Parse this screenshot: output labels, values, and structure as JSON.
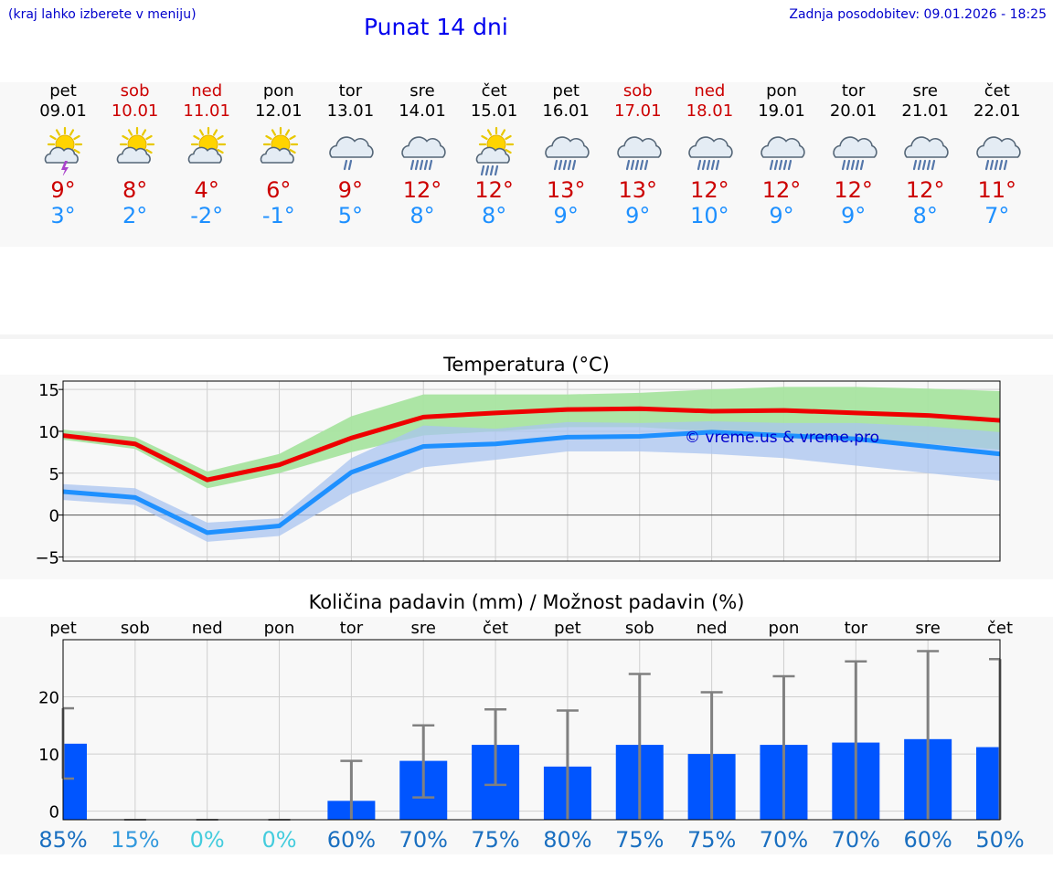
{
  "header": {
    "hint": "(kraj lahko izberete v meniju)",
    "title": "Punat 14 dni",
    "updated": "Zadnja posodobitev: 09.01.2026 - 18:25"
  },
  "days": [
    {
      "name": "pet",
      "date": "09.01",
      "icon": "sun-cloud-thunder-icon",
      "tmax": "9°",
      "tmin": "3°",
      "weekend": false
    },
    {
      "name": "sob",
      "date": "10.01",
      "icon": "sun-cloud-icon",
      "tmax": "8°",
      "tmin": "2°",
      "weekend": true
    },
    {
      "name": "ned",
      "date": "11.01",
      "icon": "sun-cloud-icon",
      "tmax": "4°",
      "tmin": "-2°",
      "weekend": true
    },
    {
      "name": "pon",
      "date": "12.01",
      "icon": "sun-cloud-icon",
      "tmax": "6°",
      "tmin": "-1°",
      "weekend": false
    },
    {
      "name": "tor",
      "date": "13.01",
      "icon": "cloud-light-rain-icon",
      "tmax": "9°",
      "tmin": "5°",
      "weekend": false
    },
    {
      "name": "sre",
      "date": "14.01",
      "icon": "cloud-rain-icon",
      "tmax": "12°",
      "tmin": "8°",
      "weekend": false
    },
    {
      "name": "čet",
      "date": "15.01",
      "icon": "sun-cloud-rain-icon",
      "tmax": "12°",
      "tmin": "8°",
      "weekend": false
    },
    {
      "name": "pet",
      "date": "16.01",
      "icon": "cloud-rain-icon",
      "tmax": "13°",
      "tmin": "9°",
      "weekend": false
    },
    {
      "name": "sob",
      "date": "17.01",
      "icon": "cloud-rain-icon",
      "tmax": "13°",
      "tmin": "9°",
      "weekend": true
    },
    {
      "name": "ned",
      "date": "18.01",
      "icon": "cloud-rain-icon",
      "tmax": "12°",
      "tmin": "10°",
      "weekend": true
    },
    {
      "name": "pon",
      "date": "19.01",
      "icon": "cloud-rain-icon",
      "tmax": "12°",
      "tmin": "9°",
      "weekend": false
    },
    {
      "name": "tor",
      "date": "20.01",
      "icon": "cloud-rain-icon",
      "tmax": "12°",
      "tmin": "9°",
      "weekend": false
    },
    {
      "name": "sre",
      "date": "21.01",
      "icon": "cloud-rain-icon",
      "tmax": "12°",
      "tmin": "8°",
      "weekend": false
    },
    {
      "name": "čet",
      "date": "22.01",
      "icon": "cloud-rain-icon",
      "tmax": "11°",
      "tmin": "7°",
      "weekend": false
    }
  ],
  "colors": {
    "max_line": "#ee0000",
    "max_band": "#a8e4a0",
    "min_line": "#1e90ff",
    "min_band": "#aac4f0",
    "bar": "#0055ff",
    "whisker": "#808080",
    "weekend": "#cc0000"
  },
  "chart_data": [
    {
      "type": "line",
      "title": "Temperatura (°C)",
      "ylim": [
        -5.5,
        16
      ],
      "yticks": [
        -5,
        0,
        5,
        10,
        15
      ],
      "grid": true,
      "watermark": "© vreme.us & vreme.pro",
      "x": [
        0,
        1,
        2,
        3,
        4,
        5,
        6,
        7,
        8,
        9,
        10,
        11,
        12,
        13
      ],
      "series": [
        {
          "name": "max",
          "values": [
            9.5,
            8.5,
            4.2,
            6.0,
            9.2,
            11.7,
            12.2,
            12.6,
            12.7,
            12.4,
            12.5,
            12.2,
            11.9,
            11.3
          ],
          "band_low": [
            9.0,
            7.9,
            3.2,
            5.0,
            7.5,
            9.5,
            10.0,
            10.5,
            10.5,
            10.0,
            9.5,
            9.0,
            8.5,
            7.8
          ],
          "band_high": [
            10.2,
            9.3,
            5.2,
            7.3,
            11.8,
            14.4,
            14.4,
            14.4,
            14.6,
            15.0,
            15.3,
            15.3,
            15.1,
            14.8
          ]
        },
        {
          "name": "min",
          "values": [
            2.8,
            2.1,
            -2.1,
            -1.3,
            5.1,
            8.2,
            8.5,
            9.3,
            9.4,
            9.9,
            9.5,
            9.1,
            8.2,
            7.3
          ],
          "band_low": [
            1.8,
            1.2,
            -3.2,
            -2.5,
            2.5,
            5.7,
            6.6,
            7.6,
            7.6,
            7.3,
            6.8,
            5.9,
            5.0,
            4.1
          ],
          "band_high": [
            3.7,
            3.2,
            -0.9,
            -0.4,
            6.8,
            10.7,
            10.3,
            11.1,
            11.0,
            11.2,
            11.0,
            11.0,
            10.6,
            9.9
          ]
        }
      ]
    },
    {
      "type": "bar",
      "title": "Količina padavin (mm) / Možnost padavin (%)",
      "categories": [
        "pet",
        "sob",
        "ned",
        "pon",
        "tor",
        "sre",
        "čet",
        "pet",
        "sob",
        "ned",
        "pon",
        "tor",
        "sre",
        "čet"
      ],
      "ylim": [
        -1.5,
        30
      ],
      "yticks": [
        0,
        10,
        20
      ],
      "values": [
        11.8,
        0,
        0,
        0,
        1.8,
        8.8,
        11.6,
        7.8,
        11.6,
        10.0,
        11.6,
        12.0,
        12.6,
        11.2
      ],
      "err_low": [
        5.7,
        0,
        0,
        0,
        0,
        2.4,
        4.6,
        0,
        0,
        0,
        0,
        0,
        0,
        0
      ],
      "err_high": [
        18.0,
        0,
        0,
        0,
        8.8,
        15.0,
        17.8,
        17.6,
        24.0,
        20.8,
        23.6,
        26.2,
        28.0,
        26.6
      ],
      "probability": [
        "85%",
        "15%",
        "0%",
        "0%",
        "60%",
        "70%",
        "75%",
        "80%",
        "75%",
        "75%",
        "70%",
        "70%",
        "60%",
        "50%"
      ],
      "probability_colors": [
        "#1a6fc0",
        "#3399dd",
        "#44ccdd",
        "#44ccdd",
        "#1a6fc0",
        "#1a6fc0",
        "#1a6fc0",
        "#1a6fc0",
        "#1a6fc0",
        "#1a6fc0",
        "#1a6fc0",
        "#1a6fc0",
        "#1a6fc0",
        "#1a6fc0"
      ]
    }
  ]
}
